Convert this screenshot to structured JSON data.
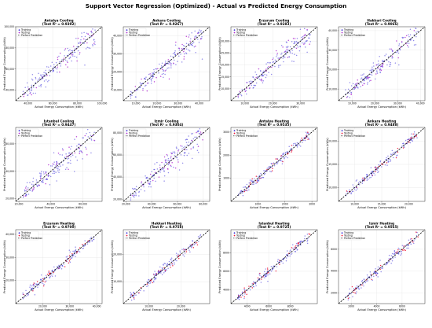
{
  "title": "Support Vector Regression (Optimized) - Actual vs Predicted Energy Consumption",
  "legend": {
    "training": "Training",
    "testing": "Testing",
    "perfect": "Perfect Prediction"
  },
  "colors": {
    "training": "#3b2fd9",
    "testing": "#b02bd1",
    "testing_heating": "#ee1133",
    "perfect": "#000000"
  },
  "chart_data": [
    {
      "type": "scatter",
      "title": "Antalya Cooling",
      "subtitle": "(Test R² = 0.9392)",
      "xlabel": "Actual Energy Consumption (kWh)",
      "ylabel": "Predicted Energy Consumption (kWh)",
      "xlim": [
        30000,
        100000
      ],
      "ylim": [
        30000,
        100000
      ],
      "xticks": [
        "40,000",
        "60,000",
        "80,000",
        "100,000"
      ],
      "yticks": [
        "40,000",
        "60,000",
        "80,000",
        "100,000"
      ],
      "grid": true,
      "legend_position": "top-left",
      "points": 180
    },
    {
      "type": "scatter",
      "title": "Ankara Cooling",
      "subtitle": "(Test R² = 0.9267)",
      "xlabel": "Actual Energy Consumption (kWh)",
      "ylabel": "Predicted Energy Consumption (kWh)",
      "xlim": [
        4000,
        45000
      ],
      "ylim": [
        4000,
        45000
      ],
      "xticks": [
        "10,000",
        "20,000",
        "30,000",
        "40,000"
      ],
      "yticks": [
        "10,000",
        "20,000",
        "30,000",
        "40,000"
      ],
      "grid": true,
      "legend_position": "top-left",
      "points": 180
    },
    {
      "type": "scatter",
      "title": "Erzurum Cooling",
      "subtitle": "(Test R² = 0.9283)",
      "xlabel": "Actual Energy Consumption (kWh)",
      "ylabel": "Predicted Energy Consumption (kWh)",
      "xlim": [
        5000,
        36000
      ],
      "ylim": [
        5000,
        36000
      ],
      "xticks": [
        "10,000",
        "20,000",
        "30,000"
      ],
      "yticks": [
        "10,000",
        "15,000",
        "20,000",
        "25,000",
        "30,000"
      ],
      "grid": true,
      "legend_position": "top-left",
      "points": 180
    },
    {
      "type": "scatter",
      "title": "Hakkari Cooling",
      "subtitle": "(Test R² = 0.9066)",
      "xlabel": "Actual Energy Consumption (kWh)",
      "ylabel": "Predicted Energy Consumption (kWh)",
      "xlim": [
        4000,
        42000
      ],
      "ylim": [
        4000,
        42000
      ],
      "xticks": [
        "10,000",
        "20,000",
        "30,000",
        "40,000"
      ],
      "yticks": [
        "10,000",
        "20,000",
        "30,000",
        "40,000"
      ],
      "grid": true,
      "legend_position": "top-left",
      "points": 180
    },
    {
      "type": "scatter",
      "title": "Istanbul Cooling",
      "subtitle": "(Test R² = 0.9447)",
      "xlabel": "Actual Energy Consumption (kWh)",
      "ylabel": "Predicted Energy Consumption (kWh)",
      "xlim": [
        18000,
        72000
      ],
      "ylim": [
        18000,
        72000
      ],
      "xticks": [
        "20,000",
        "40,000",
        "60,000"
      ],
      "yticks": [
        "20,000",
        "40,000",
        "60,000"
      ],
      "grid": true,
      "legend_position": "top-left",
      "points": 180
    },
    {
      "type": "scatter",
      "title": "Izmir Cooling",
      "subtitle": "(Test R² = 0.9304)",
      "xlabel": "Actual Energy Consumption (kWh)",
      "ylabel": "Predicted Energy Consumption (kWh)",
      "xlim": [
        18000,
        85000
      ],
      "ylim": [
        18000,
        85000
      ],
      "xticks": [
        "20,000",
        "40,000",
        "60,000",
        "80,000"
      ],
      "yticks": [
        "20,000",
        "40,000",
        "60,000",
        "80,000"
      ],
      "grid": true,
      "legend_position": "top-left",
      "points": 180
    },
    {
      "type": "scatter",
      "title": "Antalya Heating",
      "subtitle": "(Test R² = 0.9535)",
      "xlabel": "Actual Energy Consumption (kWh)",
      "ylabel": "Predicted Energy Consumption (kWh)",
      "xlim": [
        0,
        3200
      ],
      "ylim": [
        0,
        3200
      ],
      "xticks": [
        "1000",
        "2000",
        "3000"
      ],
      "yticks": [
        "1000",
        "2000",
        "3000"
      ],
      "grid": true,
      "legend_position": "top-left",
      "points": 160
    },
    {
      "type": "scatter",
      "title": "Ankara Heating",
      "subtitle": "(Test R² = 0.9488)",
      "xlabel": "Actual Energy Consumption (kWh)",
      "ylabel": "Predicted Energy Consumption (kWh)",
      "xlim": [
        7000,
        23000
      ],
      "ylim": [
        7000,
        23000
      ],
      "xticks": [
        "10,000",
        "15,000",
        "20,000"
      ],
      "yticks": [
        "10,000",
        "15,000",
        "20,000"
      ],
      "grid": true,
      "legend_position": "top-left",
      "points": 160
    },
    {
      "type": "scatter",
      "title": "Erzurum Heating",
      "subtitle": "(Test R² = 0.9700)",
      "xlabel": "Actual Energy Consumption (kWh)",
      "ylabel": "Predicted Energy Consumption (kWh)",
      "xlim": [
        10000,
        42000
      ],
      "ylim": [
        10000,
        42000
      ],
      "xticks": [
        "20,000",
        "30,000",
        "40,000"
      ],
      "yticks": [
        "20,000",
        "30,000",
        "40,000"
      ],
      "grid": true,
      "legend_position": "top-left",
      "points": 160
    },
    {
      "type": "scatter",
      "title": "Hakkari Heating",
      "subtitle": "(Test R² = 0.9758)",
      "xlabel": "Actual Energy Consumption (kWh)",
      "ylabel": "Predicted Energy Consumption (kWh)",
      "xlim": [
        2000,
        29000
      ],
      "ylim": [
        2000,
        29000
      ],
      "xticks": [
        "10,000",
        "20,000"
      ],
      "yticks": [
        "10,000",
        "20,000"
      ],
      "grid": true,
      "legend_position": "top-left",
      "points": 160
    },
    {
      "type": "scatter",
      "title": "Istanbul Heating",
      "subtitle": "(Test R² = 0.9725)",
      "xlabel": "Actual Energy Consumption (kWh)",
      "ylabel": "Predicted Energy Consumption (kWh)",
      "xlim": [
        2500,
        10500
      ],
      "ylim": [
        2500,
        10500
      ],
      "xticks": [
        "4000",
        "6000",
        "8000"
      ],
      "yticks": [
        "4000",
        "6000",
        "8000"
      ],
      "grid": true,
      "legend_position": "top-left",
      "points": 160
    },
    {
      "type": "scatter",
      "title": "Izmir Heating",
      "subtitle": "(Test R² = 0.9565)",
      "xlabel": "Actual Energy Consumption (kWh)",
      "ylabel": "Predicted Energy Consumption (kWh)",
      "xlim": [
        1000,
        7800
      ],
      "ylim": [
        1000,
        7800
      ],
      "xticks": [
        "2000",
        "4000",
        "6000"
      ],
      "yticks": [
        "2000",
        "4000",
        "6000"
      ],
      "grid": true,
      "legend_position": "top-left",
      "points": 160
    }
  ]
}
